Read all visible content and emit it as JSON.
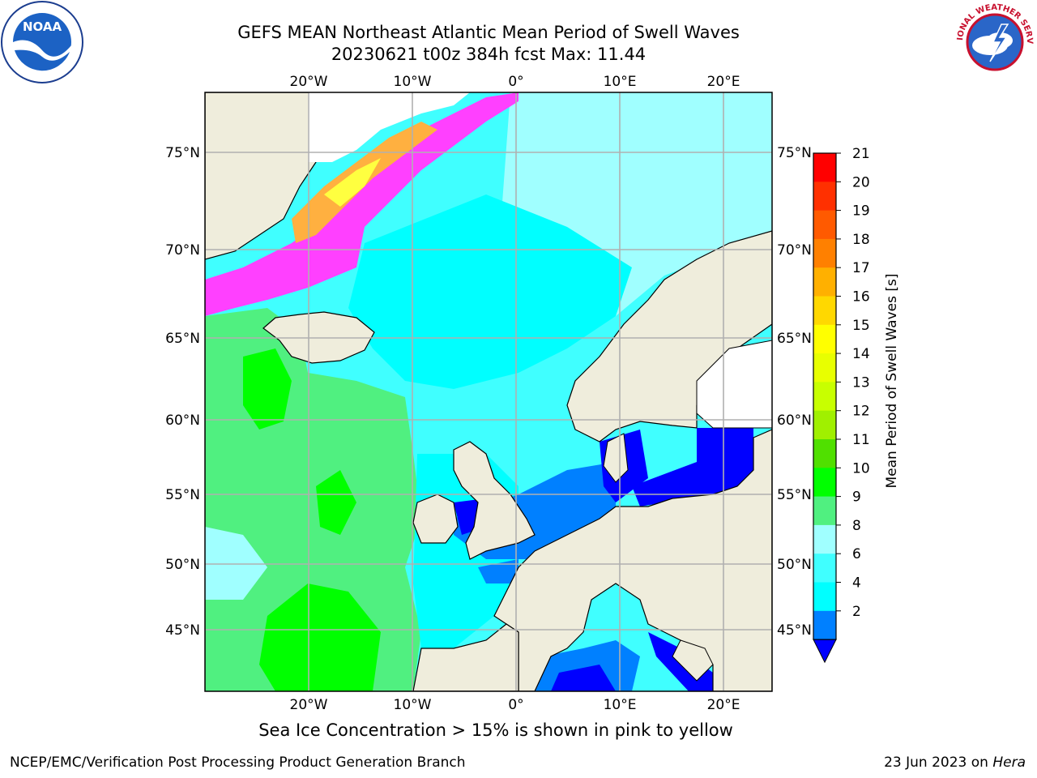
{
  "header": {
    "title_line1": "GEFS MEAN Northeast Atlantic Mean Period of Swell Waves",
    "title_line2": "20230621 t00z 384h fcst   Max: 11.44"
  },
  "logos": {
    "left": {
      "name": "noaa-logo",
      "text": "NOAA",
      "ring_text": "NATIONAL OCEANIC AND ATMOSPHERIC ADMINISTRATION · U.S. DEPARTMENT OF COMMERCE"
    },
    "right": {
      "name": "nws-logo",
      "ring_text": "NATIONAL WEATHER SERVICE"
    }
  },
  "map": {
    "region": "Northeast Atlantic",
    "lon_ticks": [
      "20°W",
      "10°W",
      "0°",
      "10°E",
      "20°E"
    ],
    "lat_ticks": [
      "75°N",
      "70°N",
      "65°N",
      "60°N",
      "55°N",
      "50°N",
      "45°N"
    ],
    "colors": {
      "land": "#efeddc",
      "ocean_low": "#0000ff",
      "band_2_4": "#0080ff",
      "band_4_6": "#00ffff",
      "band_6_8": "#40ffff",
      "band_8_9": "#a0ffff",
      "band_9_10": "#50f080",
      "band_10_11": "#00ff00",
      "ice_pink": "#ff40ff",
      "ice_orange": "#ffb040",
      "ice_yellow": "#ffff40",
      "grid": "#b0b0b0"
    }
  },
  "colorbar": {
    "label": "Mean Period of Swell Waves [s]",
    "ticks": [
      "21",
      "20",
      "19",
      "18",
      "17",
      "16",
      "15",
      "14",
      "13",
      "12",
      "11",
      "10",
      "9",
      "8",
      "6",
      "4",
      "2"
    ],
    "colors": [
      "#ff0000",
      "#ff3000",
      "#ff5a00",
      "#ff8000",
      "#ffb000",
      "#ffd800",
      "#ffff00",
      "#e8ff00",
      "#c8ff00",
      "#a0f000",
      "#50e000",
      "#00ff00",
      "#50f080",
      "#a0ffff",
      "#40ffff",
      "#00ffff",
      "#0080ff"
    ],
    "extend_color": "#0000ff"
  },
  "footer": {
    "note": "Sea Ice Concentration > 15% is shown in pink to yellow",
    "left": "NCEP/EMC/Verification Post Processing Product Generation Branch",
    "right_prefix": "23 Jun 2023 on ",
    "right_host": "Hera"
  }
}
